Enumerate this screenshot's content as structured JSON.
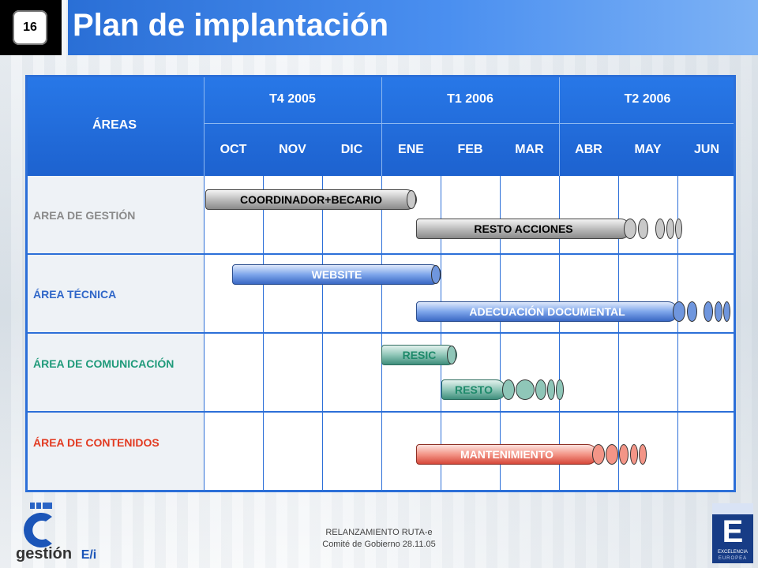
{
  "slide_number": "16",
  "title": "Plan de implantación",
  "table": {
    "areas_header": "ÁREAS",
    "quarters": [
      "T4 2005",
      "T1 2006",
      "T2 2006"
    ],
    "months": [
      "OCT",
      "NOV",
      "DIC",
      "ENE",
      "FEB",
      "MAR",
      "ABR",
      "MAY",
      "JUN"
    ],
    "rows": [
      {
        "label": "AREA DE GESTIÓN",
        "color": "#8a8a8a"
      },
      {
        "label": "ÁREA TÉCNICA",
        "color": "#2f66c8"
      },
      {
        "label": "ÁREA DE COMUNICACIÓN",
        "color": "#1f9a7a"
      },
      {
        "label": "ÁREA DE CONTENIDOS",
        "color": "#e23a21"
      }
    ]
  },
  "bars": {
    "coordinador": "COORDINADOR+BECARIO",
    "resto_acciones": "RESTO ACCIONES",
    "website": "WEBSITE",
    "adecuacion": "ADECUACIÓN DOCUMENTAL",
    "resic": "RESIC",
    "resto": "RESTO",
    "mantenimiento": "MANTENIMIENTO"
  },
  "footer": {
    "line1": "RELANZAMIENTO  RUTA-e",
    "line2": "Comité de Gobierno 28.11.05",
    "logo_left_text": "gestión",
    "logo_left_suffix": "E/i",
    "logo_right_letter": "E",
    "logo_right_text1": "EXCELENCIA",
    "logo_right_text2": "EUROPEA"
  }
}
